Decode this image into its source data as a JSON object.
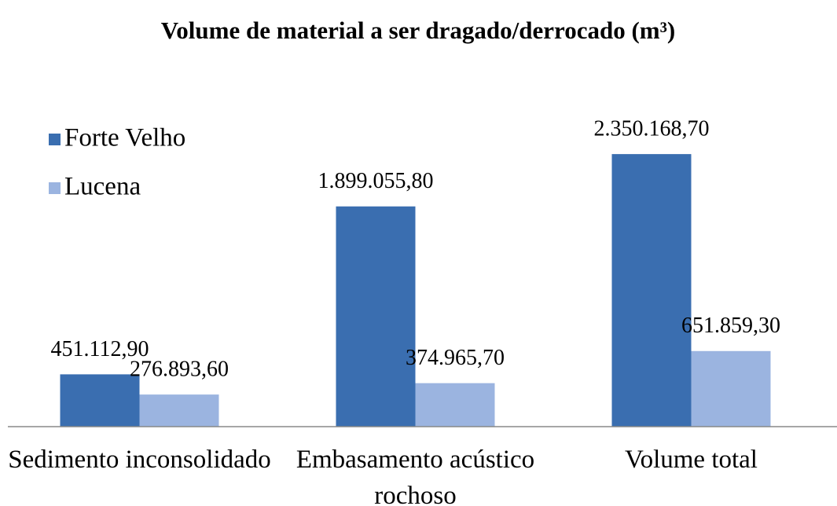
{
  "chart_data": {
    "type": "bar",
    "title": "Volume de material a ser dragado/derrocado (m³)",
    "categories": [
      "Sedimento inconsolidado",
      "Embasamento acústico rochoso",
      "Volume total"
    ],
    "series": [
      {
        "name": "Forte Velho",
        "color": "#3a6eb0",
        "values": [
          451112.9,
          1899055.8,
          2350168.7
        ],
        "value_labels": [
          "451.112,90",
          "1.899.055,80",
          "2.350.168,70"
        ]
      },
      {
        "name": "Lucena",
        "color": "#9bb4e0",
        "values": [
          276893.6,
          374965.7,
          651859.3
        ],
        "value_labels": [
          "276.893,60",
          "374.965,70",
          "651.859,30"
        ]
      }
    ],
    "ylim": [
      0,
      2500000
    ],
    "legend": "left"
  }
}
